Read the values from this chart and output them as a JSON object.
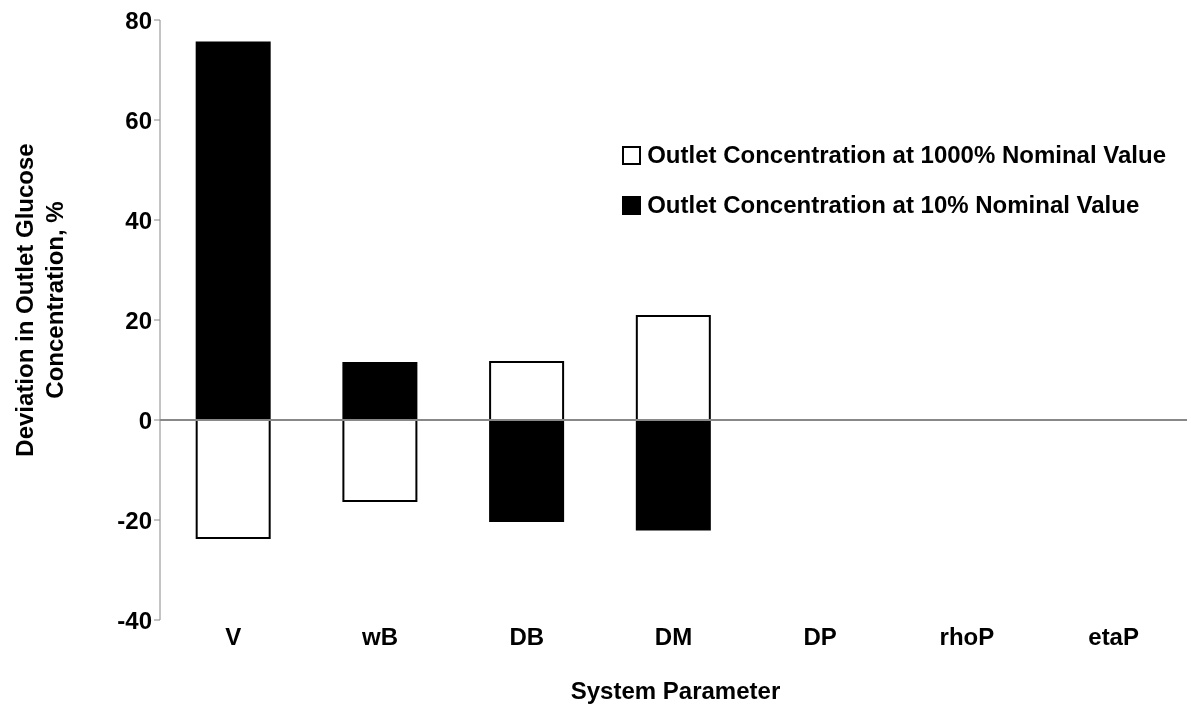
{
  "chart_data": {
    "type": "bar",
    "xlabel": "System Parameter",
    "ylabel": "Deviation in Outlet Glucose Concentration, %",
    "categories": [
      "V",
      "wB",
      "DB",
      "DM",
      "DP",
      "rhoP",
      "etaP"
    ],
    "series": [
      {
        "name": "Outlet Concentration at 1000% Nominal Value",
        "color": "#ffffff",
        "values": [
          -23.6,
          -16.2,
          11.6,
          20.8,
          0,
          0,
          0
        ]
      },
      {
        "name": "Outlet Concentration at 10% Nominal Value",
        "color": "#000000",
        "values": [
          75.5,
          11.4,
          -20.2,
          -21.9,
          0,
          0,
          0
        ]
      }
    ],
    "ylim": [
      -40,
      80
    ],
    "yticks": [
      -40,
      -20,
      0,
      20,
      40,
      60,
      80
    ],
    "grid": false,
    "legend": "top right",
    "stacked": true,
    "ref_lines": [
      {
        "axis": "y",
        "value": 0,
        "color": "#888888"
      }
    ]
  }
}
